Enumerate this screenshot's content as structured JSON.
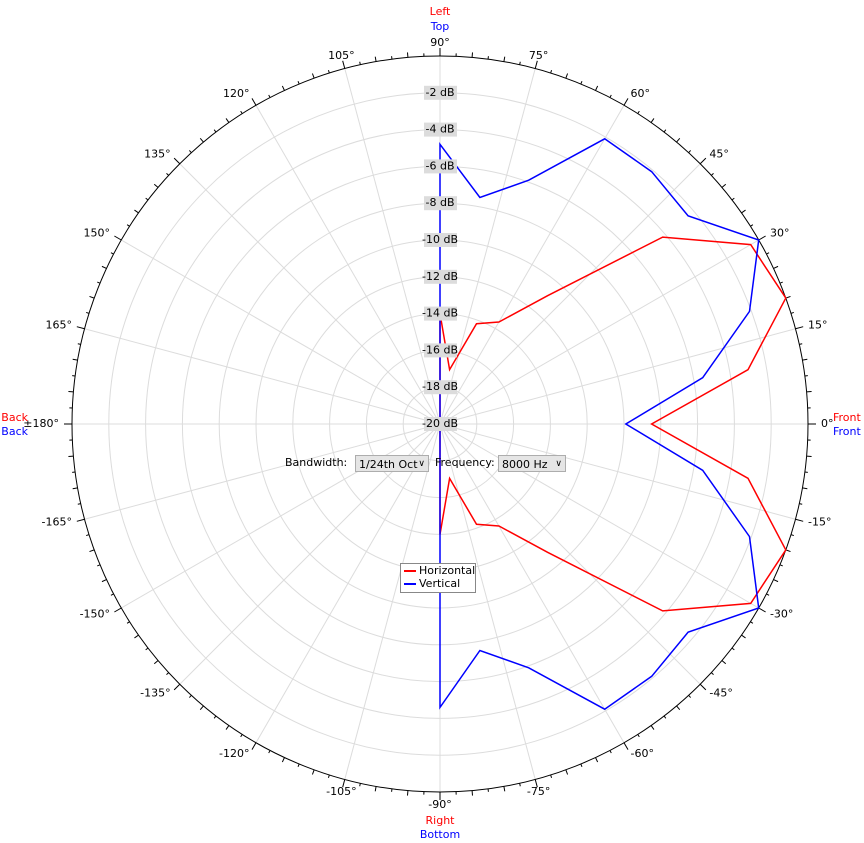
{
  "chart_data": {
    "type": "polar",
    "angles": [
      90,
      80,
      70,
      60,
      50,
      40,
      30,
      20,
      10,
      0,
      -10,
      -20,
      -30,
      -40,
      -50,
      -60,
      -70,
      -80,
      -90
    ],
    "series": [
      {
        "name": "Horizontal",
        "color": "#ff0000",
        "values": [
          -14,
          -17,
          -14.2,
          -13.6,
          -10.9,
          -4.2,
          -0.5,
          0,
          -3,
          -8.5,
          -3,
          0,
          -0.5,
          -4.2,
          -10.9,
          -13.6,
          -14.2,
          -17,
          -14
        ]
      },
      {
        "name": "Vertical",
        "color": "#0000ff",
        "values": [
          -4.8,
          -7.5,
          -5.9,
          -2.1,
          -2.1,
          -2.4,
          0,
          -2.1,
          -5.5,
          -9.9,
          -5.5,
          -2.1,
          0,
          -2.4,
          -2.1,
          -2.1,
          -5.9,
          -7.5,
          -4.6
        ]
      }
    ],
    "rlim": [
      -20,
      0
    ],
    "rticks": [
      {
        "value": -2,
        "label": "-2 dB"
      },
      {
        "value": -4,
        "label": "-4 dB"
      },
      {
        "value": -6,
        "label": "-6 dB"
      },
      {
        "value": -8,
        "label": "-8 dB"
      },
      {
        "value": -10,
        "label": "-10 dB"
      },
      {
        "value": -12,
        "label": "-12 dB"
      },
      {
        "value": -14,
        "label": "-14 dB"
      },
      {
        "value": -16,
        "label": "-16 dB"
      },
      {
        "value": -18,
        "label": "-18 dB"
      },
      {
        "value": -20,
        "label": "-20 dB"
      }
    ],
    "thetaticks": [
      {
        "value": 90,
        "label": "90°"
      },
      {
        "value": 75,
        "label": "75°"
      },
      {
        "value": 60,
        "label": "60°"
      },
      {
        "value": 45,
        "label": "45°"
      },
      {
        "value": 30,
        "label": "30°"
      },
      {
        "value": 15,
        "label": "15°"
      },
      {
        "value": 0,
        "label": "0°"
      },
      {
        "value": -15,
        "label": "-15°"
      },
      {
        "value": -30,
        "label": "-30°"
      },
      {
        "value": -45,
        "label": "-45°"
      },
      {
        "value": -60,
        "label": "-60°"
      },
      {
        "value": -75,
        "label": "-75°"
      },
      {
        "value": -90,
        "label": "-90°"
      },
      {
        "value": -105,
        "label": "-105°"
      },
      {
        "value": -120,
        "label": "-120°"
      },
      {
        "value": -135,
        "label": "-135°"
      },
      {
        "value": -150,
        "label": "-150°"
      },
      {
        "value": -165,
        "label": "-165°"
      },
      {
        "value": 180,
        "label": "±180°"
      },
      {
        "value": 165,
        "label": "165°"
      },
      {
        "value": 150,
        "label": "150°"
      },
      {
        "value": 135,
        "label": "135°"
      },
      {
        "value": 120,
        "label": "120°"
      },
      {
        "value": 105,
        "label": "105°"
      }
    ],
    "grid": true,
    "side_labels": {
      "top": [
        "Left",
        "Top"
      ],
      "bottom": [
        "Right",
        "Bottom"
      ],
      "right": [
        "Front",
        "Front"
      ],
      "left": [
        "Back",
        "Back"
      ]
    }
  },
  "controls": {
    "bandwidth_label": "Bandwidth:",
    "bandwidth_value": "1/24th Oct",
    "frequency_label": "Frequency:",
    "frequency_value": "8000 Hz"
  }
}
